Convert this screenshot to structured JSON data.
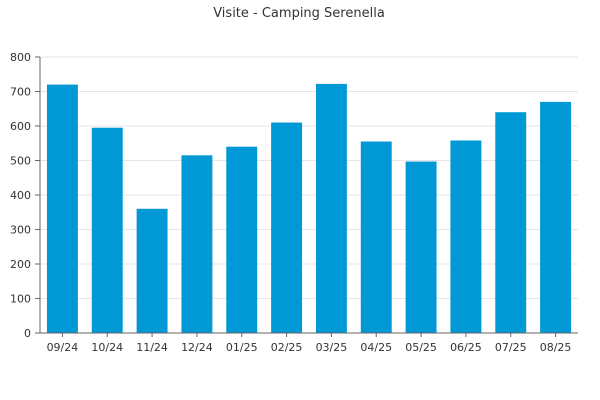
{
  "chart_data": {
    "type": "bar",
    "title": "Visite - Camping Serenella",
    "categories": [
      "09/24",
      "10/24",
      "11/24",
      "12/24",
      "01/25",
      "02/25",
      "03/25",
      "04/25",
      "05/25",
      "06/25",
      "07/25",
      "08/25"
    ],
    "values": [
      720,
      595,
      360,
      515,
      540,
      610,
      722,
      555,
      497,
      558,
      640,
      670
    ],
    "ylim": [
      0,
      800
    ],
    "yticks": [
      0,
      100,
      200,
      300,
      400,
      500,
      600,
      700,
      800
    ],
    "grid": true,
    "colors": {
      "bar": "#0099d6"
    }
  }
}
